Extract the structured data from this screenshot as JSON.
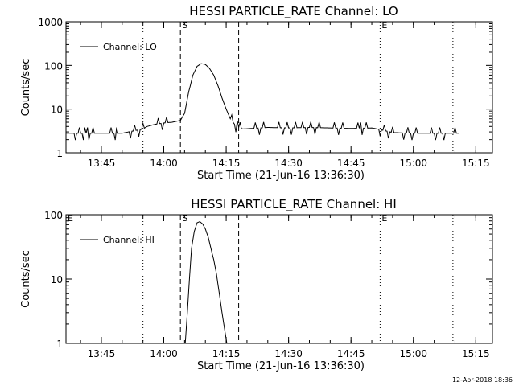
{
  "footer": "12-Apr-2018 18:36",
  "chart_data": [
    {
      "type": "line",
      "title": "HESSI PARTICLE_RATE Channel: LO",
      "xlabel": "Start Time (21-Jun-16 13:36:30)",
      "ylabel": "Counts/sec",
      "yscale": "log",
      "ylim": [
        1,
        1000
      ],
      "xlim": [
        "13:36:30",
        "15:19:00"
      ],
      "x_ticks": [
        "13:45",
        "14:00",
        "14:15",
        "14:30",
        "14:45",
        "15:00",
        "15:15"
      ],
      "y_ticks": [
        "1",
        "10",
        "100",
        "1000"
      ],
      "legend": {
        "position": "top-left",
        "entries": [
          "Channel: LO"
        ]
      },
      "markers": [
        {
          "label": "",
          "time": "13:55:00",
          "style": "dotted"
        },
        {
          "label": "S",
          "time": "14:04:00",
          "style": "dashed"
        },
        {
          "label": "",
          "time": "14:18:00",
          "style": "dashed"
        },
        {
          "label": "E",
          "time": "14:52:00",
          "style": "dotted"
        },
        {
          "label": "",
          "time": "15:09:30",
          "style": "dotted"
        }
      ],
      "series": [
        {
          "name": "Channel: LO",
          "x": [
            "13:36:30",
            "13:41:00",
            "13:46:00",
            "13:50:00",
            "13:55:00",
            "13:56:00",
            "13:58:00",
            "14:00:00",
            "14:02:00",
            "14:04:00",
            "14:05:00",
            "14:06:00",
            "14:07:00",
            "14:08:00",
            "14:09:00",
            "14:10:00",
            "14:11:00",
            "14:12:00",
            "14:13:00",
            "14:14:00",
            "14:15:00",
            "14:16:00",
            "14:17:00",
            "14:18:00",
            "14:19:00",
            "14:21:00",
            "14:25:00",
            "14:30:00",
            "14:35:00",
            "14:40:00",
            "14:45:00",
            "14:50:00",
            "14:52:00",
            "14:55:00",
            "15:00:00",
            "15:05:00",
            "15:10:00",
            "15:11:00"
          ],
          "y": [
            2.8,
            2.8,
            2.8,
            2.8,
            3.5,
            4.0,
            4.5,
            4.8,
            5.0,
            5.5,
            8,
            25,
            60,
            95,
            110,
            105,
            85,
            60,
            35,
            18,
            10,
            6,
            4.5,
            3.8,
            3.5,
            3.6,
            3.8,
            3.7,
            3.8,
            3.7,
            3.6,
            3.7,
            3.4,
            2.9,
            2.8,
            2.8,
            2.8,
            2.8
          ]
        }
      ]
    },
    {
      "type": "line",
      "title": "HESSI PARTICLE_RATE Channel: HI",
      "xlabel": "Start Time (21-Jun-16 13:36:30)",
      "ylabel": "Counts/sec",
      "yscale": "log",
      "ylim": [
        1,
        100
      ],
      "xlim": [
        "13:36:30",
        "15:19:00"
      ],
      "x_ticks": [
        "13:45",
        "14:00",
        "14:15",
        "14:30",
        "14:45",
        "15:00",
        "15:15"
      ],
      "y_ticks": [
        "1",
        "10",
        "100"
      ],
      "legend": {
        "position": "top-left",
        "entries": [
          "Channel: HI"
        ]
      },
      "markers": [
        {
          "label": "E",
          "time": "13:36:30",
          "style": "none"
        },
        {
          "label": "",
          "time": "13:55:00",
          "style": "dotted"
        },
        {
          "label": "S",
          "time": "14:04:00",
          "style": "dashed"
        },
        {
          "label": "",
          "time": "14:18:00",
          "style": "dashed"
        },
        {
          "label": "E",
          "time": "14:52:00",
          "style": "dotted"
        },
        {
          "label": "",
          "time": "15:09:30",
          "style": "dotted"
        }
      ],
      "series": [
        {
          "name": "Channel: HI",
          "x": [
            "14:05:10",
            "14:05:40",
            "14:06:10",
            "14:06:40",
            "14:07:20",
            "14:08:00",
            "14:08:40",
            "14:09:20",
            "14:10:00",
            "14:10:40",
            "14:11:20",
            "14:12:00",
            "14:12:40",
            "14:13:20",
            "14:14:00",
            "14:14:40",
            "14:15:10"
          ],
          "y": [
            1,
            3,
            10,
            30,
            55,
            75,
            78,
            72,
            60,
            45,
            30,
            20,
            12,
            6,
            3,
            1.6,
            1
          ]
        }
      ]
    }
  ]
}
